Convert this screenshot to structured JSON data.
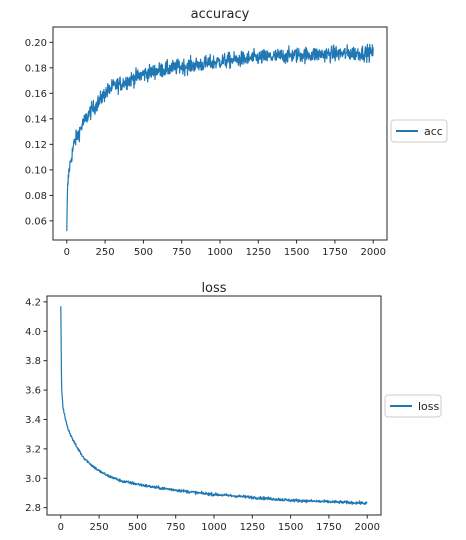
{
  "chart_data": [
    {
      "type": "line",
      "title": "accuracy",
      "xlabel": "",
      "ylabel": "",
      "xlim": [
        -90,
        2090
      ],
      "ylim": [
        0.045,
        0.212
      ],
      "xticks": [
        0,
        250,
        500,
        750,
        1000,
        1250,
        1500,
        1750,
        2000
      ],
      "xtick_labels": [
        "0",
        "250",
        "500",
        "750",
        "1000",
        "1250",
        "1500",
        "1750",
        "2000"
      ],
      "yticks": [
        0.06,
        0.08,
        0.1,
        0.12,
        0.14,
        0.16,
        0.18,
        0.2
      ],
      "ytick_labels": [
        "0.06",
        "0.08",
        "0.10",
        "0.12",
        "0.14",
        "0.16",
        "0.18",
        "0.20"
      ],
      "grid": false,
      "legend_position": "right",
      "series": [
        {
          "name": "acc",
          "color": "#1f77b4",
          "noise": 0.006,
          "x": [
            0,
            5,
            15,
            30,
            50,
            75,
            100,
            150,
            200,
            250,
            300,
            400,
            500,
            600,
            750,
            900,
            1000,
            1250,
            1500,
            1750,
            2000
          ],
          "y": [
            0.052,
            0.085,
            0.1,
            0.11,
            0.122,
            0.128,
            0.135,
            0.145,
            0.152,
            0.16,
            0.165,
            0.17,
            0.175,
            0.178,
            0.181,
            0.183,
            0.185,
            0.188,
            0.19,
            0.191,
            0.192
          ]
        }
      ]
    },
    {
      "type": "line",
      "title": "loss",
      "xlabel": "",
      "ylabel": "",
      "xlim": [
        -90,
        2090
      ],
      "ylim": [
        2.75,
        4.24
      ],
      "xticks": [
        0,
        250,
        500,
        750,
        1000,
        1250,
        1500,
        1750,
        2000
      ],
      "xtick_labels": [
        "0",
        "250",
        "500",
        "750",
        "1000",
        "1250",
        "1500",
        "1750",
        "2000"
      ],
      "yticks": [
        2.8,
        3.0,
        3.2,
        3.4,
        3.6,
        3.8,
        4.0,
        4.2
      ],
      "ytick_labels": [
        "2.8",
        "3.0",
        "3.2",
        "3.4",
        "3.6",
        "3.8",
        "4.0",
        "4.2"
      ],
      "grid": false,
      "legend_position": "right",
      "series": [
        {
          "name": "loss",
          "color": "#1f77b4",
          "noise": 0.01,
          "x": [
            0,
            5,
            15,
            30,
            50,
            75,
            100,
            150,
            200,
            250,
            300,
            400,
            500,
            600,
            750,
            900,
            1000,
            1250,
            1500,
            1750,
            2000
          ],
          "y": [
            4.17,
            3.62,
            3.48,
            3.4,
            3.33,
            3.27,
            3.22,
            3.14,
            3.09,
            3.05,
            3.02,
            2.98,
            2.96,
            2.94,
            2.92,
            2.9,
            2.89,
            2.87,
            2.85,
            2.84,
            2.83
          ]
        }
      ]
    }
  ]
}
